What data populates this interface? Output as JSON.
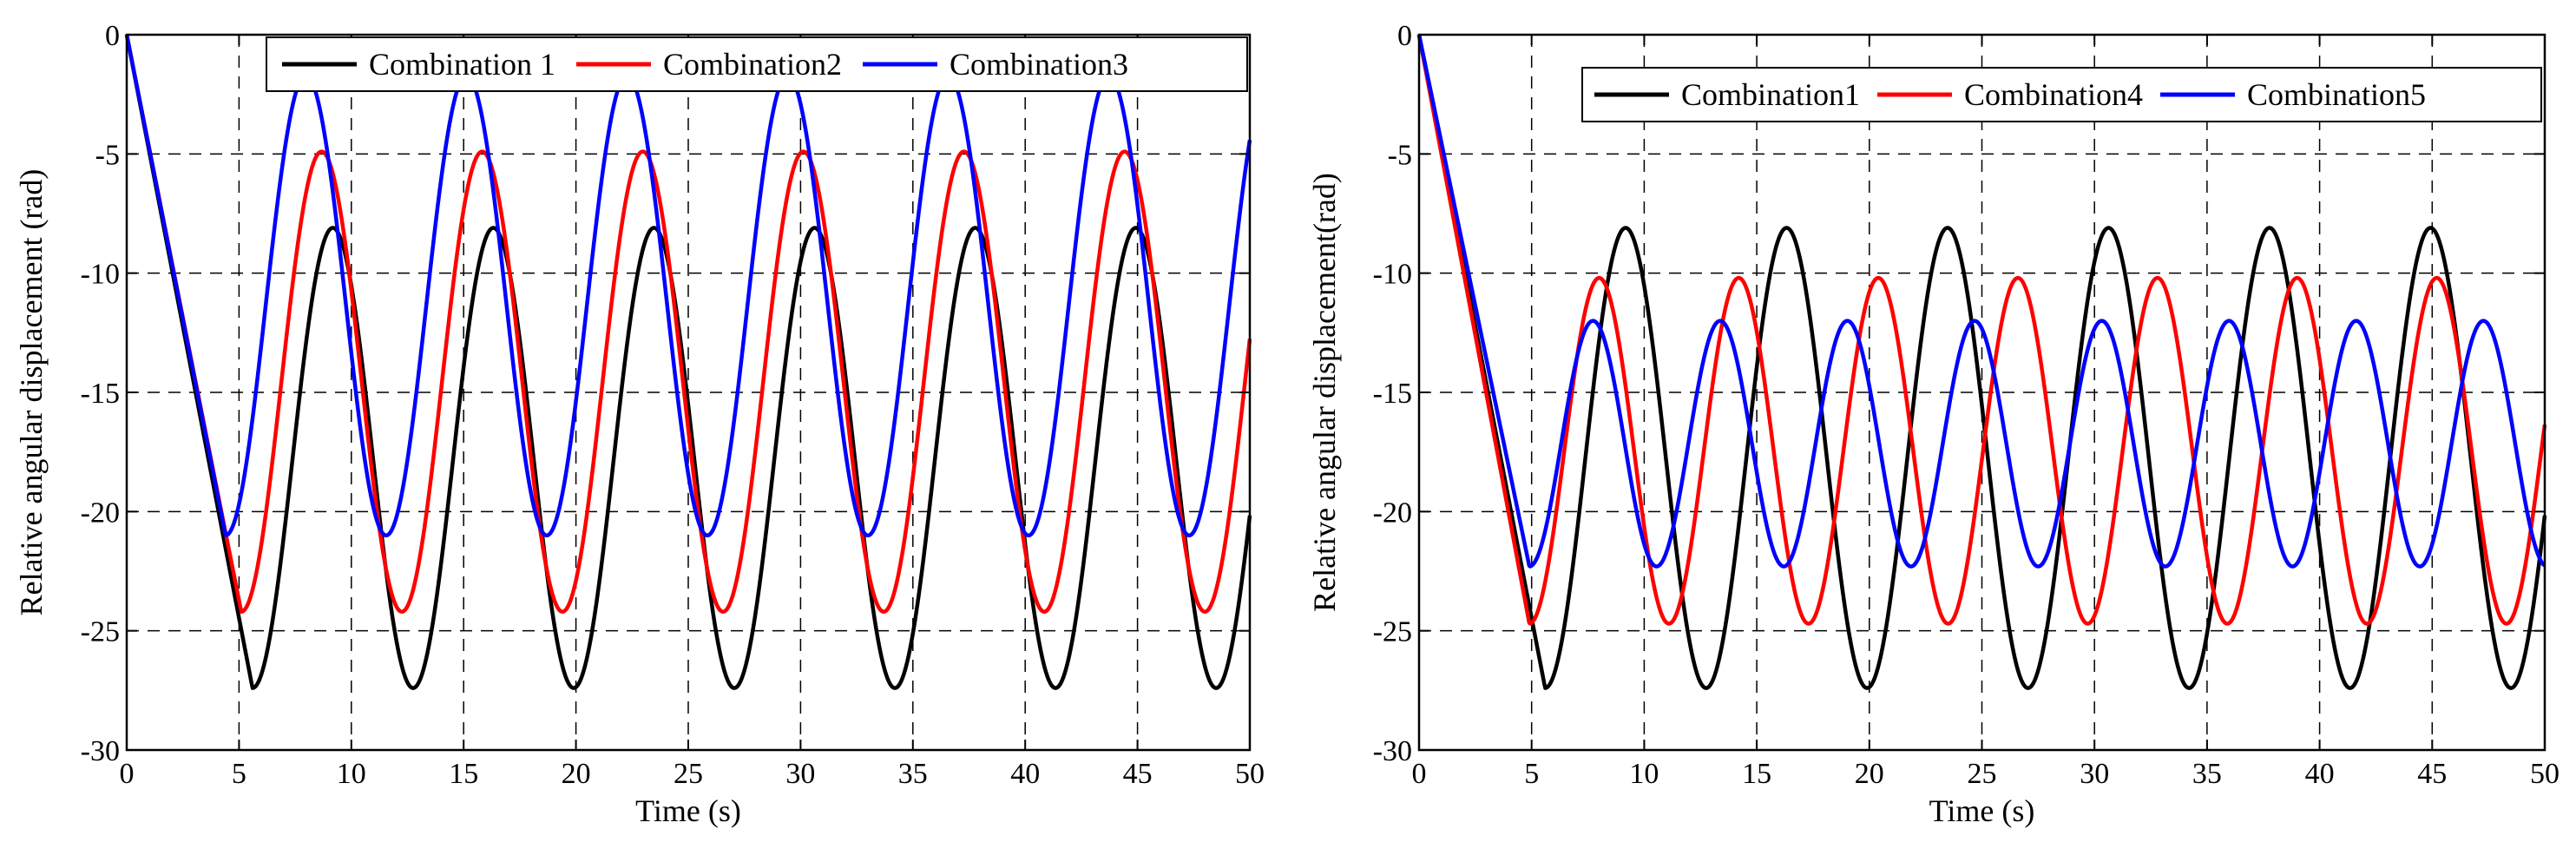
{
  "chart_data": [
    {
      "type": "line",
      "title": "",
      "xlabel": "Time (s)",
      "ylabel": "Relative angular displacement (rad)",
      "xlim": [
        0,
        50
      ],
      "ylim": [
        -30,
        0
      ],
      "xticks": [
        0,
        5,
        10,
        15,
        20,
        25,
        30,
        35,
        40,
        45,
        50
      ],
      "yticks": [
        0,
        -5,
        -10,
        -15,
        -20,
        -25,
        -30
      ],
      "xtick_labels": [
        "0",
        "5",
        "10",
        "15",
        "20",
        "25",
        "30",
        "35",
        "40",
        "45",
        "50"
      ],
      "ytick_labels": [
        "0",
        "-5",
        "-10",
        "-15",
        "-20",
        "-25",
        "-30"
      ],
      "grid": "dashed",
      "legend_position": "top-right",
      "series": [
        {
          "name": "Combination 1",
          "color": "#000000",
          "min": -27.4,
          "max": -8.1,
          "period": 7.15,
          "first_min_t": 5.6
        },
        {
          "name": "Combination2",
          "color": "#ff0000",
          "min": -24.2,
          "max": -4.9,
          "period": 7.15,
          "first_min_t": 5.1
        },
        {
          "name": "Combination3",
          "color": "#0000ff",
          "min": -21.0,
          "max": -1.7,
          "period": 7.15,
          "first_min_t": 4.4
        }
      ]
    },
    {
      "type": "line",
      "title": "",
      "xlabel": "Time (s)",
      "ylabel": "Relative angular displacement(rad)",
      "xlim": [
        0,
        50
      ],
      "ylim": [
        -30,
        0
      ],
      "xticks": [
        0,
        5,
        10,
        15,
        20,
        25,
        30,
        35,
        40,
        45,
        50
      ],
      "yticks": [
        0,
        -5,
        -10,
        -15,
        -20,
        -25,
        -30
      ],
      "xtick_labels": [
        "0",
        "5",
        "10",
        "15",
        "20",
        "25",
        "30",
        "35",
        "40",
        "45",
        "50"
      ],
      "ytick_labels": [
        "0",
        "-5",
        "-10",
        "-15",
        "-20",
        "-25",
        "-30"
      ],
      "grid": "dashed",
      "legend_position": "top-right",
      "series": [
        {
          "name": "Combination1",
          "color": "#000000",
          "min": -27.4,
          "max": -8.1,
          "period": 7.15,
          "first_min_t": 5.6
        },
        {
          "name": "Combination4",
          "color": "#ff0000",
          "min": -24.7,
          "max": -10.2,
          "period": 6.2,
          "first_min_t": 4.9
        },
        {
          "name": "Combination5",
          "color": "#0000ff",
          "min": -22.3,
          "max": -12.0,
          "period": 5.65,
          "first_min_t": 4.9
        }
      ]
    }
  ]
}
